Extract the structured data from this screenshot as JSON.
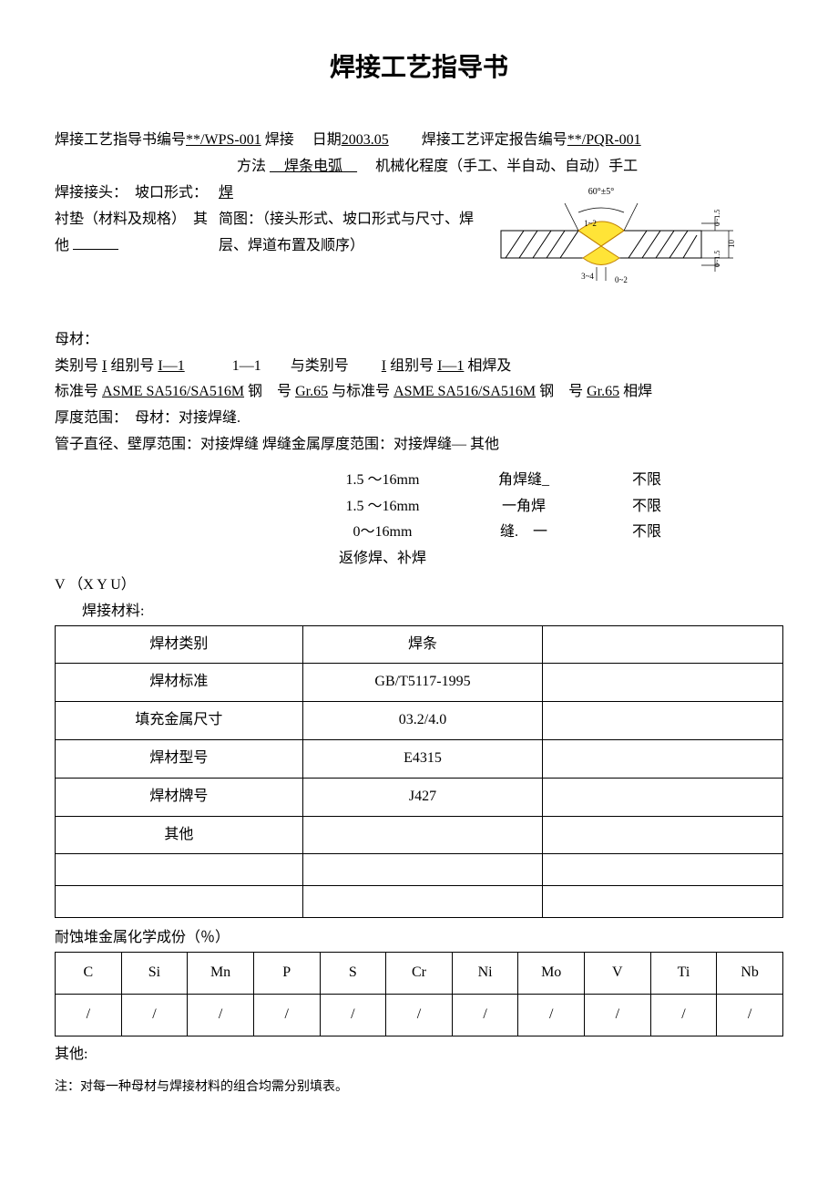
{
  "title": "焊接工艺指导书",
  "header": {
    "line1_label1": "焊接工艺指导书编号",
    "line1_val1": "**/WPS-001",
    "line1_label2": "焊接",
    "line1_label3": "日期",
    "line1_val3": "2003.05",
    "line1_label4": "焊接工艺评定报告编号",
    "line1_val4": "**/PQR-001",
    "line2_a": "方法",
    "line2_a_val": "焊条电弧",
    "line2_b": "机械化程度（手工、半自动、自动）手工",
    "left_block": "焊接接头：　坡口形式：　衬垫（材料及规格）　其他 ",
    "mid_block_a": "焊",
    "mid_block_b": "简图：（接头形式、坡口形式与尺寸、焊层、焊道布置及顺序）"
  },
  "diagram": {
    "angle_label": "60°±5°",
    "layer_top": "1~2",
    "layer_bot": "3~4",
    "gap": "0~2",
    "right_top": "0~1.5",
    "right_mid": "10",
    "right_bot": "0~1.5",
    "colors": {
      "weld_fill": "#ffe437",
      "weld_stroke": "#c08000",
      "hatch": "#000000",
      "dim": "#000000",
      "dim_text": "#000000"
    }
  },
  "base_metal": {
    "heading": "母材：",
    "line1_a": "类别号 ",
    "line1_a_val": "I",
    "line1_b": " 组别号 ",
    "line1_b_val": "I—1",
    "line1_c": "1—1",
    "line1_d": "与类别号",
    "line1_e_val": "I",
    "line1_f": " 组别号 ",
    "line1_f_val": "I—1",
    "line1_g": " 相焊及",
    "line2_a": "标准号 ",
    "line2_a_val": "ASME SA516/SA516M",
    "line2_b": " 钢　号 ",
    "line2_b_val": "Gr.65",
    "line2_c": " 与标准号 ",
    "line2_c_val": "ASME SA516/SA516M",
    "line2_d": " 钢　号 ",
    "line2_d_val": "Gr.65",
    "line2_e": " 相焊",
    "line3": "厚度范围：　母材：对接焊缝.",
    "line4": "管子直径、壁厚范围：对接焊缝 焊缝金属厚度范围：对接焊缝— 其他"
  },
  "thickness": {
    "rows": [
      {
        "c1": "",
        "c2": "1.5 〜16mm",
        "c3": "角焊缝_",
        "c4": "不限"
      },
      {
        "c1": "",
        "c2": "1.5 〜16mm",
        "c3": "一角焊",
        "c4": "不限"
      },
      {
        "c1": "",
        "c2": "0〜16mm",
        "c3": "缝.　一",
        "c4": "不限"
      },
      {
        "c1": "",
        "c2": "返修焊、补焊",
        "c3": "",
        "c4": ""
      }
    ]
  },
  "vxyu": "V （X Y U）",
  "weld_mat_heading": "焊接材料:",
  "weld_mat_table": {
    "rows": [
      {
        "label": "焊材类别",
        "value": "焊条"
      },
      {
        "label": "焊材标准",
        "value": "GB/T5117-1995"
      },
      {
        "label": "填充金属尺寸",
        "value": "03.2/4.0"
      },
      {
        "label": "焊材型号",
        "value": "E4315"
      },
      {
        "label": "焊材牌号",
        "value": "J427"
      },
      {
        "label": "其他",
        "value": ""
      },
      {
        "label": "",
        "value": ""
      },
      {
        "label": "",
        "value": ""
      }
    ]
  },
  "chem_heading": "耐蚀堆金属化学成份（％）",
  "chem_table": {
    "headers": [
      "C",
      "Si",
      "Mn",
      "P",
      "S",
      "Cr",
      "Ni",
      "Mo",
      "V",
      "Ti",
      "Nb"
    ],
    "row": [
      "/",
      "/",
      "/",
      "/",
      "/",
      "/",
      "/",
      "/",
      "/",
      "/",
      "/"
    ]
  },
  "other_label": "其他:",
  "note": "注：对每一种母材与焊接材料的组合均需分别填表。"
}
